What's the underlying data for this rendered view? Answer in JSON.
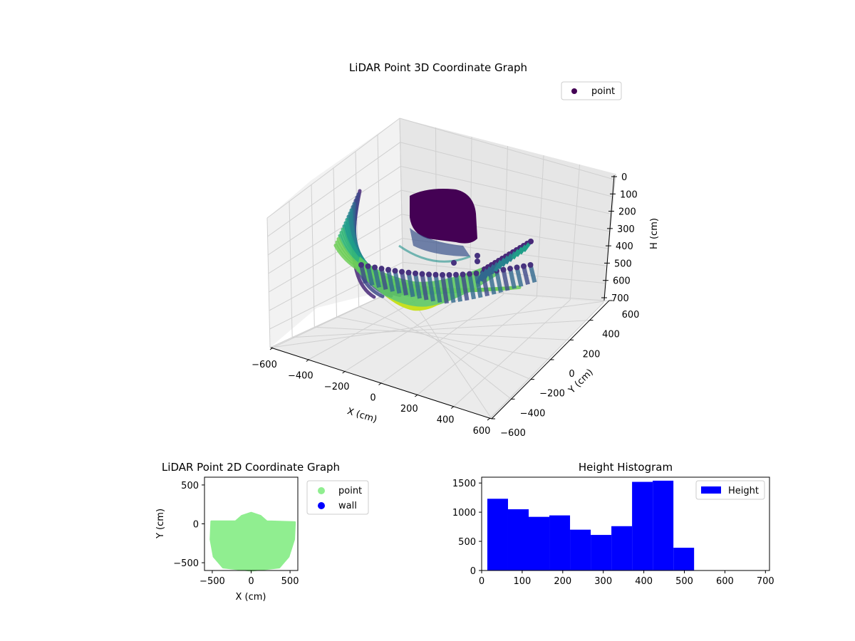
{
  "chart_data": [
    {
      "type": "scatter",
      "projection": "3d",
      "title": "LiDAR Point 3D Coordinate Graph",
      "xlabel": "X (cm)",
      "ylabel": "Y (cm)",
      "zlabel": "H (cm)",
      "xlim": [
        -600,
        600
      ],
      "ylim": [
        -600,
        600
      ],
      "zlim": [
        700,
        0
      ],
      "x_ticks": [
        -600,
        -400,
        -200,
        0,
        200,
        400,
        600
      ],
      "y_ticks": [
        -600,
        -400,
        -200,
        0,
        200,
        400,
        600
      ],
      "z_ticks": [
        0,
        100,
        200,
        300,
        400,
        500,
        600,
        700
      ],
      "z_inverted": true,
      "colormap": "viridis",
      "grid": true,
      "legend": {
        "placement": "top-right",
        "entries": [
          "point"
        ]
      },
      "series": [
        {
          "name": "point",
          "color": "#440154",
          "description_points": [
            {
              "x": -480,
              "y": -540,
              "h": 80
            },
            {
              "x": -400,
              "y": -520,
              "h": 170
            },
            {
              "x": -300,
              "y": -480,
              "h": 300
            },
            {
              "x": -200,
              "y": -420,
              "h": 420
            },
            {
              "x": -100,
              "y": -360,
              "h": 520
            },
            {
              "x": 0,
              "y": -300,
              "h": 560
            },
            {
              "x": 100,
              "y": -260,
              "h": 520
            },
            {
              "x": 200,
              "y": -240,
              "h": 420
            },
            {
              "x": 300,
              "y": -220,
              "h": 300
            },
            {
              "x": 400,
              "y": -200,
              "h": 170
            },
            {
              "x": 500,
              "y": -180,
              "h": 60
            },
            {
              "x": -50,
              "y": 20,
              "h": 60
            },
            {
              "x": 50,
              "y": 30,
              "h": 80
            },
            {
              "x": 0,
              "y": 80,
              "h": 40
            }
          ]
        }
      ]
    },
    {
      "type": "scatter",
      "title": "LiDAR Point 2D Coordinate Graph",
      "xlabel": "X (cm)",
      "ylabel": "Y (cm)",
      "xlim": [
        -600,
        600
      ],
      "ylim": [
        -600,
        600
      ],
      "x_ticks": [
        -500,
        0,
        500
      ],
      "y_ticks": [
        -500,
        0,
        500
      ],
      "grid": false,
      "legend": {
        "placement": "outside-right",
        "entries": [
          "point",
          "wall"
        ]
      },
      "series": [
        {
          "name": "point",
          "color": "#90ee90",
          "region_outline": [
            [
              -510,
              30
            ],
            [
              -200,
              30
            ],
            [
              -120,
              100
            ],
            [
              0,
              140
            ],
            [
              120,
              100
            ],
            [
              200,
              30
            ],
            [
              560,
              20
            ],
            [
              550,
              -200
            ],
            [
              480,
              -420
            ],
            [
              360,
              -560
            ],
            [
              0,
              -600
            ],
            [
              -360,
              -560
            ],
            [
              -480,
              -420
            ],
            [
              -520,
              -200
            ]
          ]
        },
        {
          "name": "wall",
          "color": "#0000ff",
          "points": []
        }
      ]
    },
    {
      "type": "bar",
      "subtype": "histogram",
      "title": "Height Histogram",
      "xlabel": "",
      "ylabel": "",
      "xlim": [
        0,
        710
      ],
      "ylim": [
        0,
        1600
      ],
      "x_ticks": [
        0,
        100,
        200,
        300,
        400,
        500,
        600,
        700
      ],
      "y_ticks": [
        0,
        500,
        1000,
        1500
      ],
      "grid": false,
      "legend": {
        "placement": "top-right",
        "entries": [
          "Height"
        ]
      },
      "bin_edges": [
        14,
        65,
        116,
        167,
        218,
        269,
        320,
        371,
        422,
        473,
        524,
        575,
        626,
        677
      ],
      "series": [
        {
          "name": "Height",
          "color": "#0000ff",
          "values": [
            1230,
            1050,
            920,
            945,
            700,
            610,
            760,
            1520,
            1540,
            390,
            0,
            0,
            0
          ]
        }
      ]
    }
  ]
}
